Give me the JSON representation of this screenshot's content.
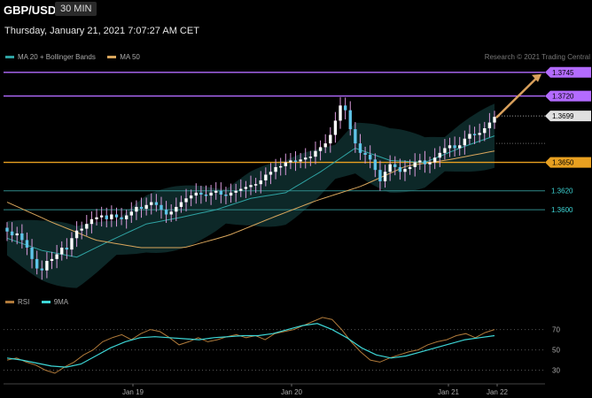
{
  "header": {
    "symbol": "GBP/USD",
    "timeframe": "30 MIN",
    "datetime": "Thursday, January 21, 2021 7:07:27 AM CET",
    "copyright": "Research © 2021 Trading Central"
  },
  "legend_main": [
    {
      "label": "MA 20 + Bollinger Bands",
      "color": "#2fa3a3"
    },
    {
      "label": "MA 50",
      "color": "#d9a65c"
    }
  ],
  "legend_rsi": [
    {
      "label": "RSI",
      "color": "#b07a3a"
    },
    {
      "label": "9MA",
      "color": "#3dd6d6"
    }
  ],
  "chart_data": [
    {
      "type": "candlestick",
      "title": "GBP/USD",
      "ylim": [
        1.3518,
        1.3756
      ],
      "x_ticks": [
        "Jan 19",
        "Jan 20",
        "Jan 21",
        "Jan 22"
      ],
      "current_price": "1.3699",
      "levels": [
        {
          "label": "1.3745",
          "value": 1.3745,
          "color": "#b36bff",
          "kind": "resistance"
        },
        {
          "label": "1.3720",
          "value": 1.372,
          "color": "#b36bff",
          "kind": "resistance"
        },
        {
          "label": "1.3650",
          "value": 1.365,
          "color": "#e8a020",
          "kind": "pivot"
        },
        {
          "label": "1.3620",
          "value": 1.362,
          "color": "#2f8a8a",
          "kind": "support"
        },
        {
          "label": "1.3600",
          "value": 1.36,
          "color": "#2f8a8a",
          "kind": "support"
        }
      ],
      "projection": {
        "from": 1.3699,
        "to": 1.3745,
        "color": "#d9a05c"
      },
      "series": [
        {
          "name": "GBP/USD",
          "values": [
            1.3577,
            1.3573,
            1.3575,
            1.3568,
            1.356,
            1.3548,
            1.3538,
            1.3536,
            1.3546,
            1.3548,
            1.3553,
            1.356,
            1.3558,
            1.357,
            1.3578,
            1.358,
            1.3585,
            1.359,
            1.3592,
            1.3594,
            1.359,
            1.3595,
            1.3592,
            1.359,
            1.3594,
            1.3598,
            1.3603,
            1.3601,
            1.3605,
            1.3608,
            1.3605,
            1.36,
            1.3595,
            1.3598,
            1.3603,
            1.3608,
            1.3612,
            1.3615,
            1.3618,
            1.3616,
            1.3615,
            1.3618,
            1.362,
            1.3616,
            1.3615,
            1.3618,
            1.362,
            1.3622,
            1.3624,
            1.3626,
            1.3627,
            1.3631,
            1.3637,
            1.364,
            1.3645,
            1.3646,
            1.365,
            1.3652,
            1.3651,
            1.3653,
            1.3655,
            1.3656,
            1.3662,
            1.3666,
            1.367,
            1.3679,
            1.3694,
            1.371,
            1.3705,
            1.3685,
            1.367,
            1.366,
            1.3658,
            1.3653,
            1.3642,
            1.363,
            1.364,
            1.3648,
            1.3645,
            1.364,
            1.3643,
            1.3645,
            1.365,
            1.3652,
            1.3648,
            1.365,
            1.3655,
            1.366,
            1.3665,
            1.3668,
            1.3665,
            1.3668,
            1.3675,
            1.368,
            1.3679,
            1.3681,
            1.3686,
            1.3692,
            1.3698
          ]
        },
        {
          "name": "MA 50",
          "values": [
            1.3608,
            1.3587,
            1.3568,
            1.356,
            1.356,
            1.3573,
            1.3592,
            1.361,
            1.3625,
            1.3646,
            1.3653,
            1.3662
          ]
        },
        {
          "name": "MA 20",
          "values": [
            1.357,
            1.3557,
            1.355,
            1.3568,
            1.3585,
            1.3592,
            1.36,
            1.3612,
            1.3618,
            1.364,
            1.3665,
            1.3652,
            1.365,
            1.3665,
            1.3678
          ]
        }
      ]
    },
    {
      "type": "line",
      "title": "RSI",
      "ylim": [
        20,
        88
      ],
      "y_ticks": [
        "70",
        "50",
        "30"
      ],
      "series": [
        {
          "name": "RSI",
          "values": [
            40,
            42,
            38,
            35,
            30,
            27,
            33,
            38,
            45,
            50,
            58,
            62,
            65,
            60,
            66,
            70,
            68,
            62,
            55,
            58,
            62,
            58,
            60,
            63,
            65,
            62,
            64,
            60,
            66,
            68,
            70,
            74,
            78,
            82,
            80,
            70,
            58,
            48,
            40,
            38,
            42,
            45,
            48,
            50,
            55,
            58,
            60,
            64,
            66,
            62,
            67,
            70
          ]
        },
        {
          "name": "9MA",
          "values": [
            42,
            40,
            37,
            34,
            33,
            36,
            44,
            52,
            58,
            62,
            63,
            62,
            61,
            60,
            62,
            63,
            64,
            64,
            66,
            70,
            74,
            76,
            70,
            62,
            52,
            45,
            42,
            44,
            48,
            52,
            56,
            60,
            62,
            64
          ]
        }
      ]
    }
  ]
}
